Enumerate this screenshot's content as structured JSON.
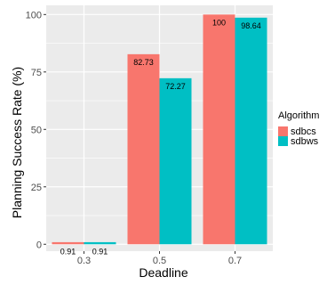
{
  "chart_data": {
    "type": "bar",
    "categories": [
      "0.3",
      "0.5",
      "0.7"
    ],
    "series": [
      {
        "name": "sdbcs",
        "values": [
          0.91,
          82.73,
          100
        ],
        "color": "#F8766D"
      },
      {
        "name": "sdbws",
        "values": [
          0.91,
          72.27,
          98.64
        ],
        "color": "#00BFC4"
      }
    ],
    "data_labels": [
      [
        "0.91",
        "82.73",
        "100"
      ],
      [
        "0.91",
        "72.27",
        "98.64"
      ]
    ],
    "title": "",
    "xlabel": "Deadline",
    "ylabel": "Planning Success Rate (%)",
    "ylim": [
      -3,
      104
    ],
    "yticks": [
      0,
      25,
      50,
      75,
      100
    ],
    "ytick_labels": [
      "0",
      "25",
      "50",
      "75",
      "100"
    ],
    "legend": {
      "title": "Algorithm",
      "position": "right"
    },
    "grid": true,
    "panel_background": "#EBEBEB",
    "grid_color": "#FFFFFF"
  }
}
